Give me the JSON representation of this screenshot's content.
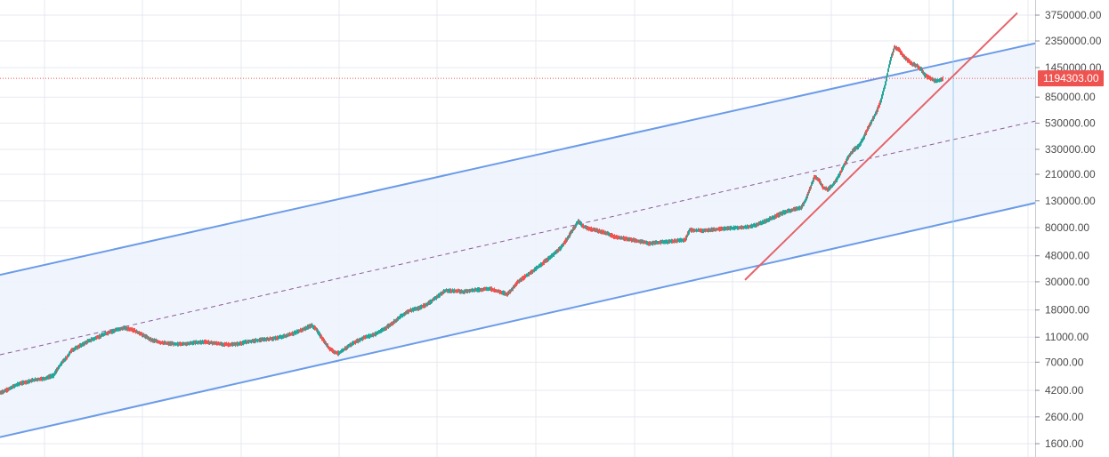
{
  "chart_data": {
    "type": "line",
    "scale": "log",
    "grid": true,
    "ylim": [
      1400,
      4200000
    ],
    "y_ticks": [
      {
        "value": 3750000,
        "label": "3750000.00"
      },
      {
        "value": 2350000,
        "label": "2350000.00"
      },
      {
        "value": 1450000,
        "label": "1450000.00"
      },
      {
        "value": 850000,
        "label": "850000.00"
      },
      {
        "value": 530000,
        "label": "530000.00"
      },
      {
        "value": 330000,
        "label": "330000.00"
      },
      {
        "value": 210000,
        "label": "210000.00"
      },
      {
        "value": 130000,
        "label": "130000.00"
      },
      {
        "value": 80000,
        "label": "80000.00"
      },
      {
        "value": 48000,
        "label": "48000.00"
      },
      {
        "value": 30000,
        "label": "30000.00"
      },
      {
        "value": 18000,
        "label": "18000.00"
      },
      {
        "value": 11000,
        "label": "11000.00"
      },
      {
        "value": 7000,
        "label": "7000.00"
      },
      {
        "value": 4200,
        "label": "4200.00"
      },
      {
        "value": 2600,
        "label": "2600.00"
      },
      {
        "value": 1600,
        "label": "1600.00"
      }
    ],
    "current_price": {
      "value": 1194303,
      "label": "1194303.00"
    },
    "price_series": {
      "x": [
        0,
        10,
        20,
        30,
        40,
        50,
        60,
        65,
        70,
        75,
        80,
        90,
        100,
        110,
        120,
        130,
        140,
        150,
        160,
        170,
        180,
        190,
        200,
        210,
        220,
        230,
        240,
        250,
        260,
        270,
        280,
        290,
        300,
        310,
        320,
        330,
        340,
        350,
        355,
        360,
        365,
        370,
        375,
        380,
        385,
        390,
        395,
        400,
        410,
        420,
        430,
        440,
        450,
        460,
        470,
        480,
        490,
        500,
        510,
        520,
        530,
        540,
        550,
        560,
        570,
        575,
        580,
        590,
        600,
        610,
        620,
        630,
        640,
        650,
        655,
        660,
        670,
        680,
        690,
        700,
        710,
        720,
        730,
        740,
        750,
        760,
        770,
        775,
        780,
        790,
        800,
        810,
        820,
        830,
        840,
        850,
        860,
        870,
        880,
        890,
        900,
        905,
        910,
        915,
        920,
        925,
        930,
        935,
        940,
        945,
        950,
        955,
        960,
        965,
        970,
        975,
        980,
        985,
        990,
        995,
        1000,
        1005,
        1010,
        1015,
        1020,
        1025,
        1030,
        1035,
        1040,
        1045,
        1050,
        1055,
        1060
      ],
      "y": [
        4000,
        4300,
        4700,
        4900,
        5100,
        5200,
        5500,
        6200,
        7000,
        7600,
        8600,
        9400,
        10300,
        11000,
        11800,
        12500,
        13000,
        12500,
        11500,
        10500,
        10000,
        9800,
        9700,
        9800,
        10000,
        10100,
        9900,
        9700,
        9600,
        9800,
        10200,
        10400,
        10600,
        10800,
        11200,
        11800,
        12600,
        13600,
        12800,
        11300,
        10000,
        9000,
        8500,
        8200,
        8600,
        9200,
        9700,
        10100,
        11000,
        11500,
        12500,
        14000,
        16000,
        17800,
        18500,
        20000,
        22500,
        25500,
        25500,
        25000,
        25800,
        26000,
        26500,
        25200,
        24000,
        26000,
        29000,
        33000,
        37000,
        42000,
        48000,
        55000,
        70000,
        90000,
        82000,
        79000,
        76000,
        73000,
        68000,
        66000,
        64000,
        62000,
        60000,
        61000,
        62000,
        63000,
        64000,
        77000,
        76000,
        76000,
        77000,
        78000,
        79000,
        80000,
        81000,
        84000,
        90000,
        97000,
        105000,
        110000,
        115000,
        130000,
        160000,
        200000,
        190000,
        165000,
        160000,
        170000,
        190000,
        220000,
        260000,
        300000,
        330000,
        350000,
        400000,
        480000,
        560000,
        650000,
        800000,
        1100000,
        1600000,
        2100000,
        2000000,
        1800000,
        1650000,
        1550000,
        1500000,
        1400000,
        1250000,
        1200000,
        1150000,
        1150000,
        1194303
      ]
    },
    "channel": {
      "upper_line": {
        "x0": 0,
        "y0": 34000,
        "x1": 1163,
        "y1": 2250000
      },
      "lower_line": {
        "x0": 0,
        "y0": 1800,
        "x1": 1163,
        "y1": 125000
      },
      "mid_line": {
        "x0": 0,
        "y0": 8000,
        "x1": 1163,
        "y1": 550000
      }
    },
    "trend_line": {
      "x0": 837,
      "y0": 31000,
      "x1": 1143,
      "y1": 3900000
    },
    "vertical_marker_x": 1071
  },
  "colors": {
    "up": "#26a69a",
    "down": "#ef5350",
    "channel": "#6b9be8",
    "channel_fill": "#eef4fd",
    "mid_line": "#8e5a9a",
    "trend": "#e5646a",
    "grid": "#e6e9ef",
    "marker": "#9ccbe6",
    "price_tag_bg": "#ef5350",
    "price_tag_text": "#ffffff",
    "axis_text": "#4a4a4a"
  }
}
